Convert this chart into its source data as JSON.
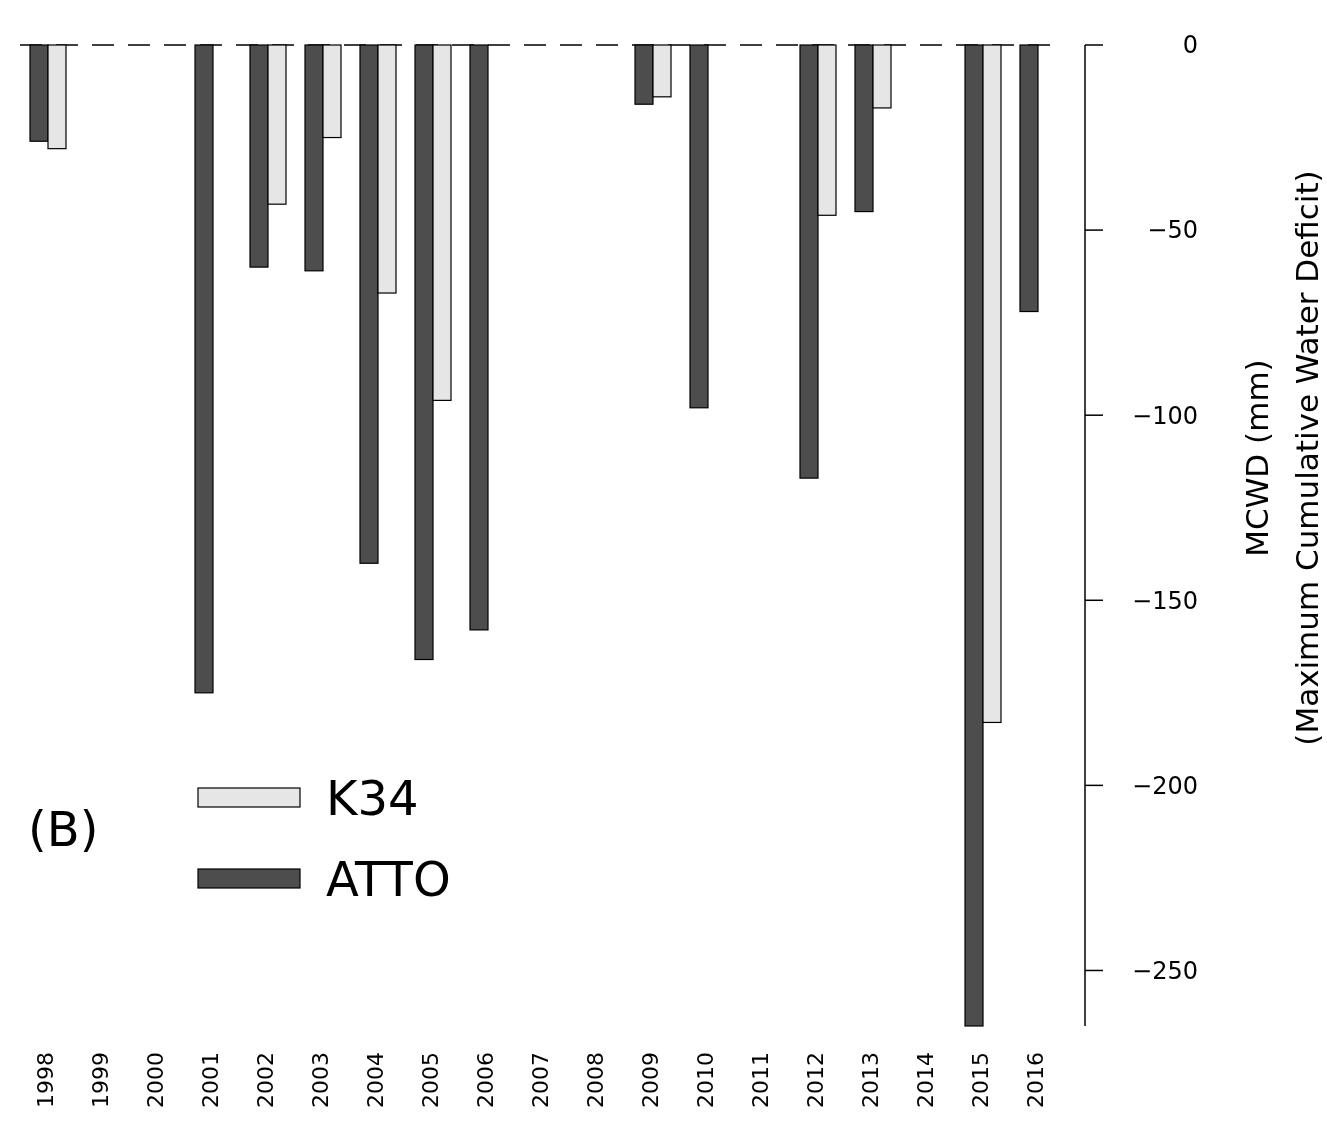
{
  "chart_data": {
    "type": "bar",
    "ylabel": "MCWD (mm)\n(Maximum Cumulative Water Deficit)",
    "categories": [
      "1998",
      "1999",
      "2000",
      "2001",
      "2002",
      "2003",
      "2004",
      "2005",
      "2006",
      "2007",
      "2008",
      "2009",
      "2010",
      "2011",
      "2012",
      "2013",
      "2014",
      "2015",
      "2016"
    ],
    "series": [
      {
        "name": "ATTO",
        "color": "#4d4d4d",
        "values": [
          -26,
          null,
          null,
          -175,
          -60,
          -61,
          -140,
          -166,
          -158,
          null,
          null,
          -16,
          -98,
          null,
          -117,
          -45,
          null,
          -265,
          -72
        ]
      },
      {
        "name": "K34",
        "color": "#e6e6e6",
        "values": [
          -28,
          null,
          null,
          null,
          -43,
          -25,
          -67,
          -96,
          null,
          null,
          null,
          -14,
          null,
          null,
          -46,
          -17,
          null,
          -183,
          null
        ]
      }
    ],
    "ylim": [
      -265,
      0
    ],
    "yticks": [
      0,
      -50,
      -100,
      -150,
      -200,
      -250
    ],
    "ref_lines": [
      {
        "axis": "y",
        "value": 0,
        "line_style": "dashed"
      }
    ],
    "annotations": [
      "(B)"
    ],
    "legend": "bottom left",
    "grid": false
  }
}
